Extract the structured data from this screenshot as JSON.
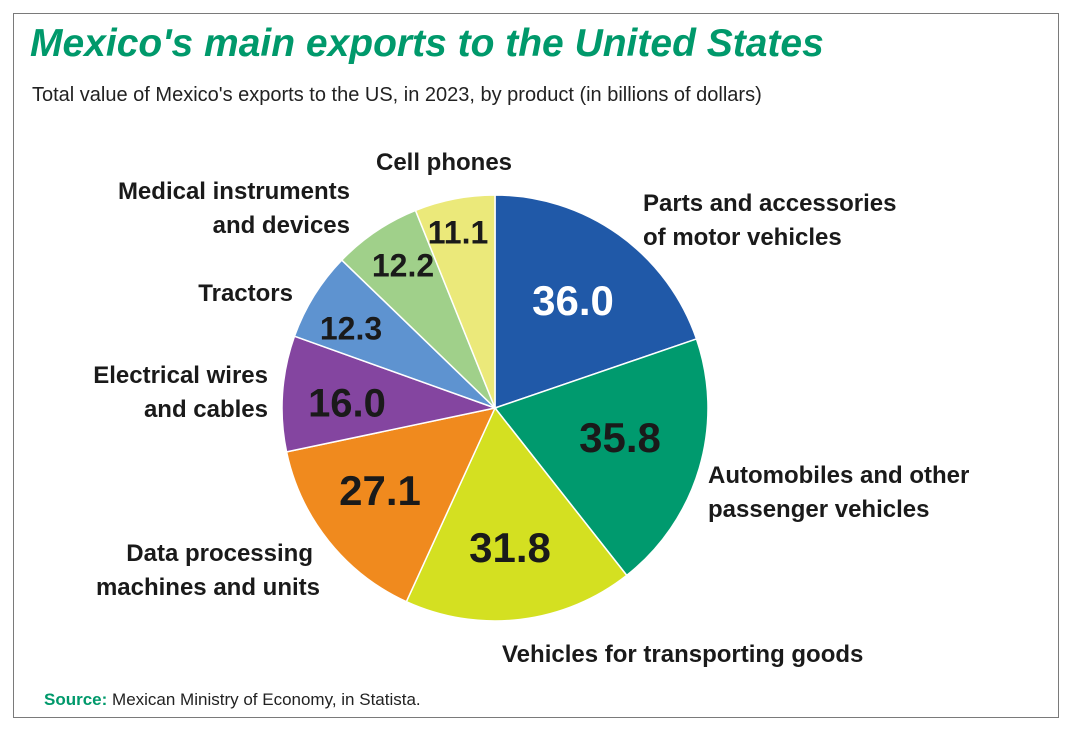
{
  "chart_data": {
    "type": "pie",
    "title": "Mexico's main exports to the United States",
    "subtitle": "Total value of Mexico's exports to the US, in 2023, by product (in billions of dollars)",
    "source_label": "Source:",
    "source_text": "Mexican Ministry of Economy, in Statista.",
    "start": "12 o'clock, clockwise",
    "slices": [
      {
        "label_lines": [
          "Parts and accessories",
          "of motor vehicles"
        ],
        "value": 36.0,
        "value_text": "36.0",
        "color": "#2059a8",
        "text_color": "#ffffff"
      },
      {
        "label_lines": [
          "Automobiles and other",
          "passenger vehicles"
        ],
        "value": 35.8,
        "value_text": "35.8",
        "color": "#009a6e",
        "text_color": "#1a1a1a"
      },
      {
        "label_lines": [
          "Vehicles for transporting goods"
        ],
        "value": 31.8,
        "value_text": "31.8",
        "color": "#d4e021",
        "text_color": "#1a1a1a"
      },
      {
        "label_lines": [
          "Data processing",
          "machines and units"
        ],
        "value": 27.1,
        "value_text": "27.1",
        "color": "#f08a1e",
        "text_color": "#1a1a1a"
      },
      {
        "label_lines": [
          "Electrical wires",
          "and cables"
        ],
        "value": 16.0,
        "value_text": "16.0",
        "color": "#8445a0",
        "text_color": "#1a1a1a"
      },
      {
        "label_lines": [
          "Tractors"
        ],
        "value": 12.3,
        "value_text": "12.3",
        "color": "#5e93d0",
        "text_color": "#1a1a1a"
      },
      {
        "label_lines": [
          "Medical instruments",
          "and devices"
        ],
        "value": 12.2,
        "value_text": "12.2",
        "color": "#a0d08a",
        "text_color": "#1a1a1a"
      },
      {
        "label_lines": [
          "Cell phones"
        ],
        "value": 11.1,
        "value_text": "11.1",
        "color": "#ebe97a",
        "text_color": "#1a1a1a"
      }
    ]
  }
}
